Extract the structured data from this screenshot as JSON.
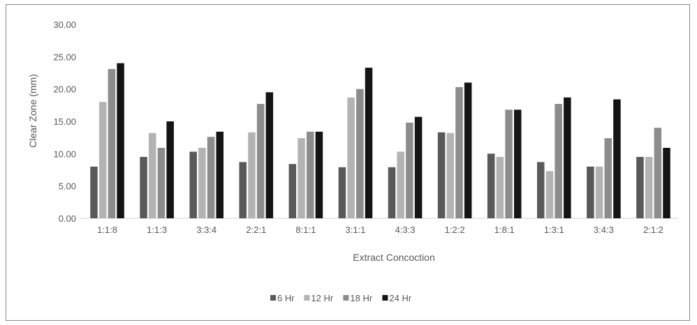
{
  "chart_data": {
    "type": "bar",
    "title": "",
    "xlabel": "Extract Concoction",
    "ylabel": "Clear Zone (mm)",
    "ylim": [
      0,
      30
    ],
    "yticks": [
      "0.00",
      "5.00",
      "10.00",
      "15.00",
      "20.00",
      "25.00",
      "30.00"
    ],
    "grid": false,
    "legend_position": "bottom",
    "categories": [
      "1:1:8",
      "1:1:3",
      "3:3:4",
      "2:2:1",
      "8:1:1",
      "3:1:1",
      "4:3:3",
      "1:2:2",
      "1:8:1",
      "1:3:1",
      "3:4:3",
      "2:1:2"
    ],
    "series": [
      {
        "name": "6 Hr",
        "color": "#595959",
        "values": [
          8.0,
          9.5,
          10.3,
          8.7,
          8.4,
          7.9,
          7.9,
          13.3,
          10.0,
          8.7,
          8.0,
          9.5
        ]
      },
      {
        "name": "12 Hr",
        "color": "#b3b3b3",
        "values": [
          18.0,
          13.2,
          10.9,
          13.3,
          12.4,
          18.7,
          10.3,
          13.2,
          9.5,
          7.3,
          8.0,
          9.5
        ]
      },
      {
        "name": "18 Hr",
        "color": "#8c8c8c",
        "values": [
          23.1,
          10.9,
          12.6,
          17.7,
          13.4,
          20.0,
          14.8,
          20.3,
          16.8,
          17.7,
          12.4,
          14.0
        ]
      },
      {
        "name": "24 Hr",
        "color": "#141414",
        "values": [
          24.0,
          15.0,
          13.4,
          19.5,
          13.4,
          23.3,
          15.7,
          21.0,
          16.8,
          18.7,
          18.4,
          10.9
        ]
      }
    ]
  }
}
